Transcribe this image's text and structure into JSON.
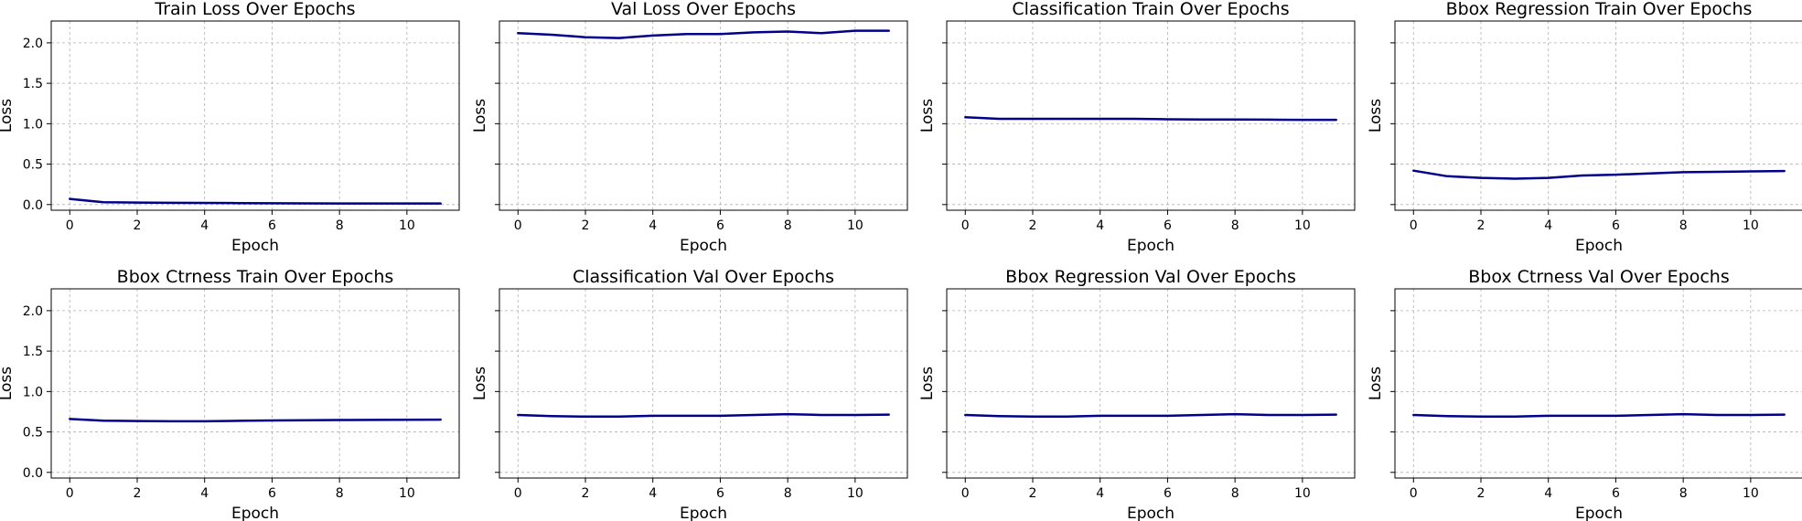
{
  "chart_data": [
    {
      "type": "line",
      "title": "Train Loss Over Epochs",
      "xlabel": "Epoch",
      "ylabel": "Loss",
      "x": [
        0,
        1,
        2,
        3,
        4,
        5,
        6,
        7,
        8,
        9,
        10,
        11
      ],
      "series": [
        {
          "values": [
            0.07,
            0.03,
            0.025,
            0.022,
            0.02,
            0.018,
            0.016,
            0.015,
            0.014,
            0.014,
            0.014,
            0.014
          ]
        }
      ],
      "xticks": [
        "0",
        "2",
        "4",
        "6",
        "8",
        "10"
      ],
      "yticks": [
        "0.0",
        "0.5",
        "1.0",
        "1.5",
        "2.0"
      ],
      "xlim": [
        -0.55,
        11.55
      ],
      "ylim": [
        -0.07,
        2.27
      ],
      "grid": true,
      "show_yticklabels": true,
      "color": "#00008b"
    },
    {
      "type": "line",
      "title": "Val Loss Over Epochs",
      "xlabel": "Epoch",
      "ylabel": "Loss",
      "x": [
        0,
        1,
        2,
        3,
        4,
        5,
        6,
        7,
        8,
        9,
        10,
        11
      ],
      "series": [
        {
          "values": [
            2.12,
            2.1,
            2.07,
            2.06,
            2.09,
            2.11,
            2.11,
            2.13,
            2.14,
            2.12,
            2.15,
            2.15
          ]
        }
      ],
      "xticks": [
        "0",
        "2",
        "4",
        "6",
        "8",
        "10"
      ],
      "yticks": [
        "0.0",
        "0.5",
        "1.0",
        "1.5",
        "2.0"
      ],
      "xlim": [
        -0.55,
        11.55
      ],
      "ylim": [
        -0.07,
        2.27
      ],
      "grid": true,
      "show_yticklabels": false,
      "color": "#00008b"
    },
    {
      "type": "line",
      "title": "Classification Train Over Epochs",
      "xlabel": "Epoch",
      "ylabel": "Loss",
      "x": [
        0,
        1,
        2,
        3,
        4,
        5,
        6,
        7,
        8,
        9,
        10,
        11
      ],
      "series": [
        {
          "values": [
            1.08,
            1.06,
            1.06,
            1.06,
            1.06,
            1.06,
            1.055,
            1.053,
            1.052,
            1.05,
            1.048,
            1.048
          ]
        }
      ],
      "xticks": [
        "0",
        "2",
        "4",
        "6",
        "8",
        "10"
      ],
      "yticks": [
        "0.0",
        "0.5",
        "1.0",
        "1.5",
        "2.0"
      ],
      "xlim": [
        -0.55,
        11.55
      ],
      "ylim": [
        -0.07,
        2.27
      ],
      "grid": true,
      "show_yticklabels": false,
      "color": "#00008b"
    },
    {
      "type": "line",
      "title": "Bbox Regression Train Over Epochs",
      "xlabel": "Epoch",
      "ylabel": "Loss",
      "x": [
        0,
        1,
        2,
        3,
        4,
        5,
        6,
        7,
        8,
        9,
        10,
        11
      ],
      "series": [
        {
          "values": [
            0.42,
            0.35,
            0.33,
            0.32,
            0.33,
            0.36,
            0.37,
            0.385,
            0.4,
            0.405,
            0.41,
            0.415
          ]
        }
      ],
      "xticks": [
        "0",
        "2",
        "4",
        "6",
        "8",
        "10"
      ],
      "yticks": [
        "0.0",
        "0.5",
        "1.0",
        "1.5",
        "2.0"
      ],
      "xlim": [
        -0.55,
        11.55
      ],
      "ylim": [
        -0.07,
        2.27
      ],
      "grid": true,
      "show_yticklabels": false,
      "color": "#00008b"
    },
    {
      "type": "line",
      "title": "Bbox Ctrness Train Over Epochs",
      "xlabel": "Epoch",
      "ylabel": "Loss",
      "x": [
        0,
        1,
        2,
        3,
        4,
        5,
        6,
        7,
        8,
        9,
        10,
        11
      ],
      "series": [
        {
          "values": [
            0.66,
            0.64,
            0.635,
            0.632,
            0.632,
            0.638,
            0.642,
            0.645,
            0.648,
            0.649,
            0.65,
            0.652
          ]
        }
      ],
      "xticks": [
        "0",
        "2",
        "4",
        "6",
        "8",
        "10"
      ],
      "yticks": [
        "0.0",
        "0.5",
        "1.0",
        "1.5",
        "2.0"
      ],
      "xlim": [
        -0.55,
        11.55
      ],
      "ylim": [
        -0.07,
        2.27
      ],
      "grid": true,
      "show_yticklabels": true,
      "color": "#00008b"
    },
    {
      "type": "line",
      "title": "Classification Val Over Epochs",
      "xlabel": "Epoch",
      "ylabel": "Loss",
      "x": [
        0,
        1,
        2,
        3,
        4,
        5,
        6,
        7,
        8,
        9,
        10,
        11
      ],
      "series": [
        {
          "values": [
            0.71,
            0.695,
            0.69,
            0.69,
            0.7,
            0.7,
            0.7,
            0.71,
            0.72,
            0.71,
            0.71,
            0.715
          ]
        }
      ],
      "xticks": [
        "0",
        "2",
        "4",
        "6",
        "8",
        "10"
      ],
      "yticks": [
        "0.0",
        "0.5",
        "1.0",
        "1.5",
        "2.0"
      ],
      "xlim": [
        -0.55,
        11.55
      ],
      "ylim": [
        -0.07,
        2.27
      ],
      "grid": true,
      "show_yticklabels": false,
      "color": "#00008b"
    },
    {
      "type": "line",
      "title": "Bbox Regression Val Over Epochs",
      "xlabel": "Epoch",
      "ylabel": "Loss",
      "x": [
        0,
        1,
        2,
        3,
        4,
        5,
        6,
        7,
        8,
        9,
        10,
        11
      ],
      "series": [
        {
          "values": [
            0.71,
            0.695,
            0.69,
            0.69,
            0.7,
            0.7,
            0.7,
            0.71,
            0.72,
            0.71,
            0.71,
            0.715
          ]
        }
      ],
      "xticks": [
        "0",
        "2",
        "4",
        "6",
        "8",
        "10"
      ],
      "yticks": [
        "0.0",
        "0.5",
        "1.0",
        "1.5",
        "2.0"
      ],
      "xlim": [
        -0.55,
        11.55
      ],
      "ylim": [
        -0.07,
        2.27
      ],
      "grid": true,
      "show_yticklabels": false,
      "color": "#00008b"
    },
    {
      "type": "line",
      "title": "Bbox Ctrness Val Over Epochs",
      "xlabel": "Epoch",
      "ylabel": "Loss",
      "x": [
        0,
        1,
        2,
        3,
        4,
        5,
        6,
        7,
        8,
        9,
        10,
        11
      ],
      "series": [
        {
          "values": [
            0.71,
            0.695,
            0.69,
            0.69,
            0.7,
            0.7,
            0.7,
            0.71,
            0.72,
            0.71,
            0.71,
            0.715
          ]
        }
      ],
      "xticks": [
        "0",
        "2",
        "4",
        "6",
        "8",
        "10"
      ],
      "yticks": [
        "0.0",
        "0.5",
        "1.0",
        "1.5",
        "2.0"
      ],
      "xlim": [
        -0.55,
        11.55
      ],
      "ylim": [
        -0.07,
        2.27
      ],
      "grid": true,
      "show_yticklabels": false,
      "color": "#00008b"
    }
  ]
}
